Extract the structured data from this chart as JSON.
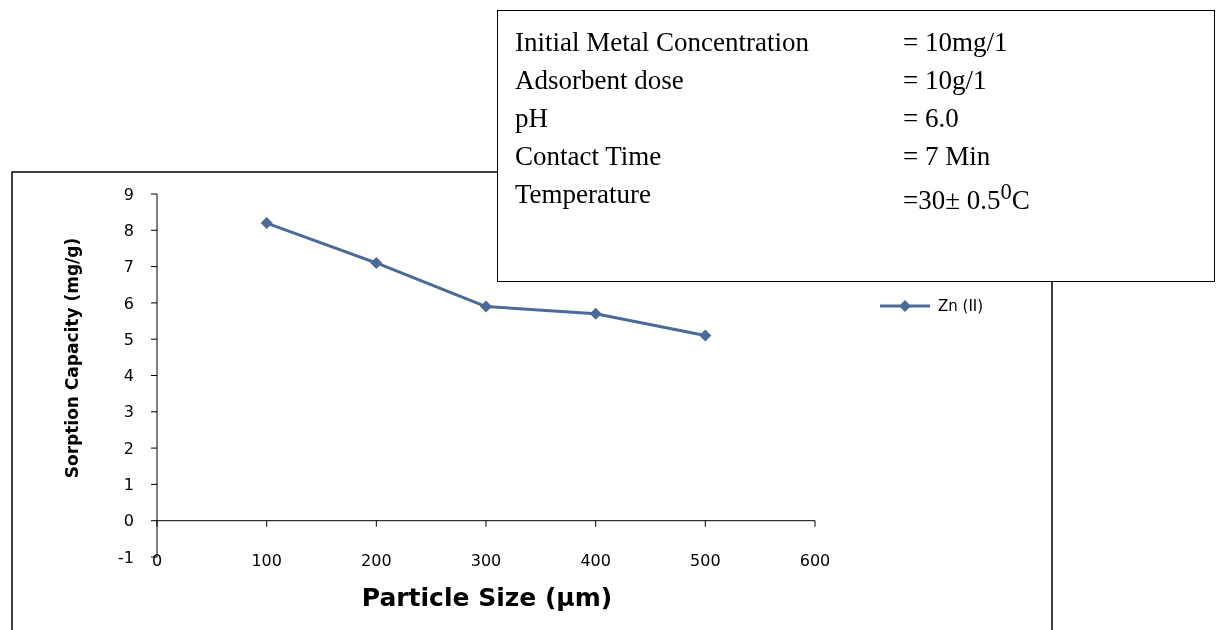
{
  "chart_data": {
    "type": "line",
    "xlabel": "Particle Size (μm)",
    "ylabel": "Sorption Capacity (mg/g)",
    "x": [
      100,
      200,
      300,
      400,
      500
    ],
    "series": [
      {
        "name": "Zn (II)",
        "color": "#4a6b96",
        "values": [
          8.2,
          7.1,
          5.9,
          5.7,
          5.1
        ]
      }
    ],
    "xlim": [
      0,
      600
    ],
    "xticks": [
      0,
      100,
      200,
      300,
      400,
      500,
      600
    ],
    "ylim": [
      -1,
      9
    ],
    "yticks": [
      -1,
      0,
      1,
      2,
      3,
      4,
      5,
      6,
      7,
      8,
      9
    ],
    "marker": "diamond",
    "legend": "right",
    "grid": false,
    "annotations": [
      "Initial Metal Concentration",
      "= 10mg/1",
      "Adsorbent dose",
      "= 10g/1",
      "pH",
      "= 6.0",
      "Contact Time",
      "= 7 Min",
      "Temperature",
      "=30± 0.5$^{0}$C"
    ]
  }
}
